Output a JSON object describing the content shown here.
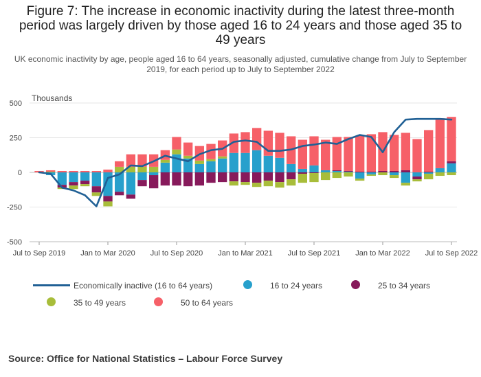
{
  "title": "Figure 7: The increase in economic inactivity during the latest three-month period was largely driven by those aged 16 to 24 years and those aged 35 to 49 years",
  "subtitle": "UK economic inactivity by age, people aged 16 to 64 years, seasonally adjusted, cumulative change from July to September 2019, for each period up to July to September 2022",
  "source": "Source: Office for National Statistics – Labour Force Survey",
  "colors": {
    "economically_inactive": "#206095",
    "age_16_24": "#27a0cc",
    "age_25_34": "#871a5b",
    "age_35_49": "#a8bd3a",
    "age_50_64": "#f66068"
  },
  "legend": {
    "line": "Economically inactive (16 to 64 years)",
    "age_16_24": "16 to 24 years",
    "age_25_34": "25 to 34 years",
    "age_35_49": "35 to 49 years",
    "age_50_64": "50 to 64 years"
  },
  "chart_data": {
    "type": "bar",
    "stacked": true,
    "ylabel": "Thousands",
    "ylim": [
      -500,
      500
    ],
    "yticks": [
      500,
      250,
      0,
      -250,
      -500
    ],
    "grid": true,
    "legend_position": "bottom",
    "x_tick_labels": [
      "Jul to Sep 2019",
      "Jan to Mar 2020",
      "Jul to Sep 2020",
      "Jan to Mar 2021",
      "Jul to Sep 2021",
      "Jan to Mar 2022",
      "Jul to Sep 2022"
    ],
    "categories": [
      "Jul to Sep 2019",
      "Aug to Oct 2019",
      "Sep to Nov 2019",
      "Oct to Dec 2019",
      "Nov 2019 to Jan 2020",
      "Dec 2019 to Feb 2020",
      "Jan to Mar 2020",
      "Feb to Apr 2020",
      "Mar to May 2020",
      "Apr to Jun 2020",
      "May to Jul 2020",
      "Jun to Aug 2020",
      "Jul to Sep 2020",
      "Aug to Oct 2020",
      "Sep to Nov 2020",
      "Oct to Dec 2020",
      "Nov 2020 to Jan 2021",
      "Dec 2020 to Feb 2021",
      "Jan to Mar 2021",
      "Feb to Apr 2021",
      "Mar to May 2021",
      "Apr to Jun 2021",
      "May to Jul 2021",
      "Jun to Aug 2021",
      "Jul to Sep 2021",
      "Aug to Oct 2021",
      "Sep to Nov 2021",
      "Oct to Dec 2021",
      "Nov 2021 to Jan 2022",
      "Dec 2021 to Feb 2022",
      "Jan to Mar 2022",
      "Feb to Apr 2022",
      "Mar to May 2022",
      "Apr to Jun 2022",
      "May to Jul 2022",
      "Jun to Aug 2022",
      "Jul to Sep 2022"
    ],
    "series": [
      {
        "name": "16 to 24 years",
        "key": "age_16_24",
        "values": [
          0,
          -20,
          -90,
          -70,
          -60,
          -100,
          -170,
          -140,
          -160,
          -55,
          -20,
          70,
          130,
          100,
          60,
          80,
          100,
          140,
          140,
          160,
          120,
          105,
          60,
          25,
          50,
          15,
          10,
          5,
          -45,
          -15,
          0,
          -20,
          -75,
          -30,
          -10,
          30,
          65
        ]
      },
      {
        "name": "25 to 34 years",
        "key": "age_25_34",
        "values": [
          0,
          0,
          -20,
          -25,
          -25,
          -45,
          -40,
          -25,
          -30,
          -45,
          -95,
          -95,
          -95,
          -100,
          -95,
          -75,
          -70,
          -65,
          -70,
          -75,
          -60,
          -70,
          -50,
          -10,
          -5,
          0,
          5,
          5,
          5,
          5,
          10,
          10,
          15,
          -20,
          5,
          0,
          15
        ]
      },
      {
        "name": "35 to 49 years",
        "key": "age_35_49",
        "values": [
          0,
          5,
          -10,
          -25,
          -15,
          -25,
          -35,
          40,
          40,
          40,
          40,
          20,
          35,
          20,
          25,
          15,
          15,
          -30,
          -20,
          -30,
          -40,
          -40,
          -45,
          -65,
          -65,
          -55,
          -40,
          -30,
          -15,
          -10,
          -20,
          -20,
          -20,
          -15,
          -40,
          -25,
          -20
        ]
      },
      {
        "name": "50 to 64 years",
        "key": "age_50_64",
        "values": [
          10,
          10,
          10,
          10,
          10,
          10,
          20,
          40,
          90,
          90,
          90,
          70,
          90,
          95,
          105,
          110,
          115,
          140,
          150,
          160,
          180,
          180,
          200,
          210,
          210,
          220,
          240,
          245,
          260,
          270,
          280,
          260,
          270,
          240,
          300,
          360,
          320
        ]
      },
      {
        "name": "Economically inactive (16 to 64 years)",
        "key": "economically_inactive",
        "type": "line",
        "values": [
          0,
          -10,
          -110,
          -130,
          -165,
          -245,
          -40,
          -15,
          50,
          45,
          80,
          120,
          100,
          80,
          130,
          160,
          170,
          220,
          230,
          220,
          155,
          155,
          165,
          190,
          200,
          215,
          205,
          240,
          270,
          255,
          145,
          290,
          380,
          385,
          385,
          385,
          380
        ]
      }
    ]
  }
}
